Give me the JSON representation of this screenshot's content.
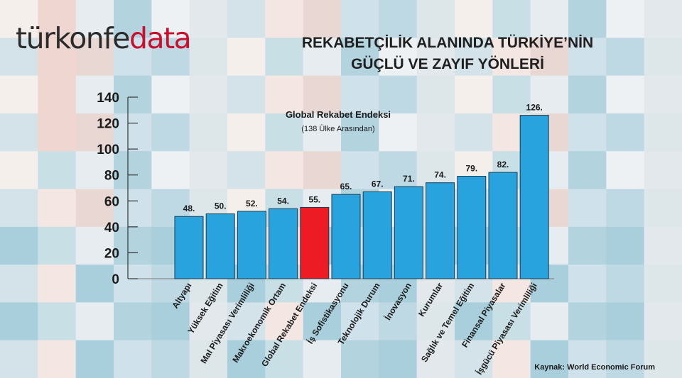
{
  "brand": {
    "logo_part1": "türkonfe",
    "logo_part2": "data",
    "accent": "#c8102e"
  },
  "title": {
    "line1": "REKABETÇİLİK ALANINDA TÜRKİYE’NİN",
    "line2": "GÜÇLÜ VE ZAYIF YÖNLERİ"
  },
  "source": "Kaynak: World Economic Forum",
  "chart_data": {
    "type": "bar",
    "annotation": "Global Rekabet Endeksi",
    "annotation_sub": "(138 Ülke Arasından)",
    "categories": [
      "Altyapı",
      "Yüksek Eğitim",
      "Mal Piyasası Verimliliği",
      "Makroekonomik Ortam",
      "Global Rekabet Endeksi",
      "İş Sofistikasyonu",
      "Teknolojik Durum",
      "İnovasyon",
      "Kurumlar",
      "Sağlık ve Temel Eğitim",
      "Finansal Piyasalar",
      "İşgücü Piyasası Verimliliği"
    ],
    "values": [
      48,
      50,
      52,
      54,
      55,
      65,
      67,
      71,
      74,
      79,
      82,
      126
    ],
    "value_labels": [
      "48.",
      "50.",
      "52.",
      "54.",
      "55.",
      "65.",
      "67.",
      "71.",
      "74.",
      "79.",
      "82.",
      "126."
    ],
    "highlight_index": 4,
    "colors": {
      "bar": "#29a3de",
      "highlight": "#ed1c24",
      "outline": "#1b3b50"
    },
    "ylim": [
      0,
      140
    ],
    "yticks": [
      0,
      20,
      40,
      60,
      80,
      100,
      120,
      140
    ],
    "grid": false
  }
}
